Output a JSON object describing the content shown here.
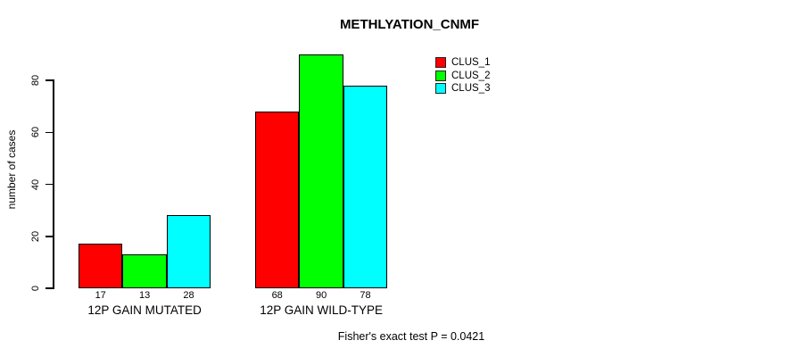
{
  "chart_data": {
    "type": "bar",
    "title": "METHLYATION_CNMF",
    "xlabel": "",
    "ylabel": "number of cases",
    "categories": [
      "12P GAIN MUTATED",
      "12P GAIN WILD-TYPE"
    ],
    "series": [
      {
        "name": "CLUS_1",
        "color": "#ff0000",
        "values": [
          17,
          68
        ]
      },
      {
        "name": "CLUS_2",
        "color": "#00ff00",
        "values": [
          13,
          90
        ]
      },
      {
        "name": "CLUS_3",
        "color": "#00ffff",
        "values": [
          28,
          78
        ]
      }
    ],
    "bar_value_labels": [
      [
        "17",
        "13",
        "28"
      ],
      [
        "68",
        "90",
        "78"
      ]
    ],
    "yticks": [
      "0",
      "20",
      "40",
      "60",
      "80"
    ],
    "ylim": [
      0,
      90
    ],
    "grid": false,
    "legend_position": "upper-right",
    "annotation": "Fisher's exact test P = 0.0421"
  }
}
